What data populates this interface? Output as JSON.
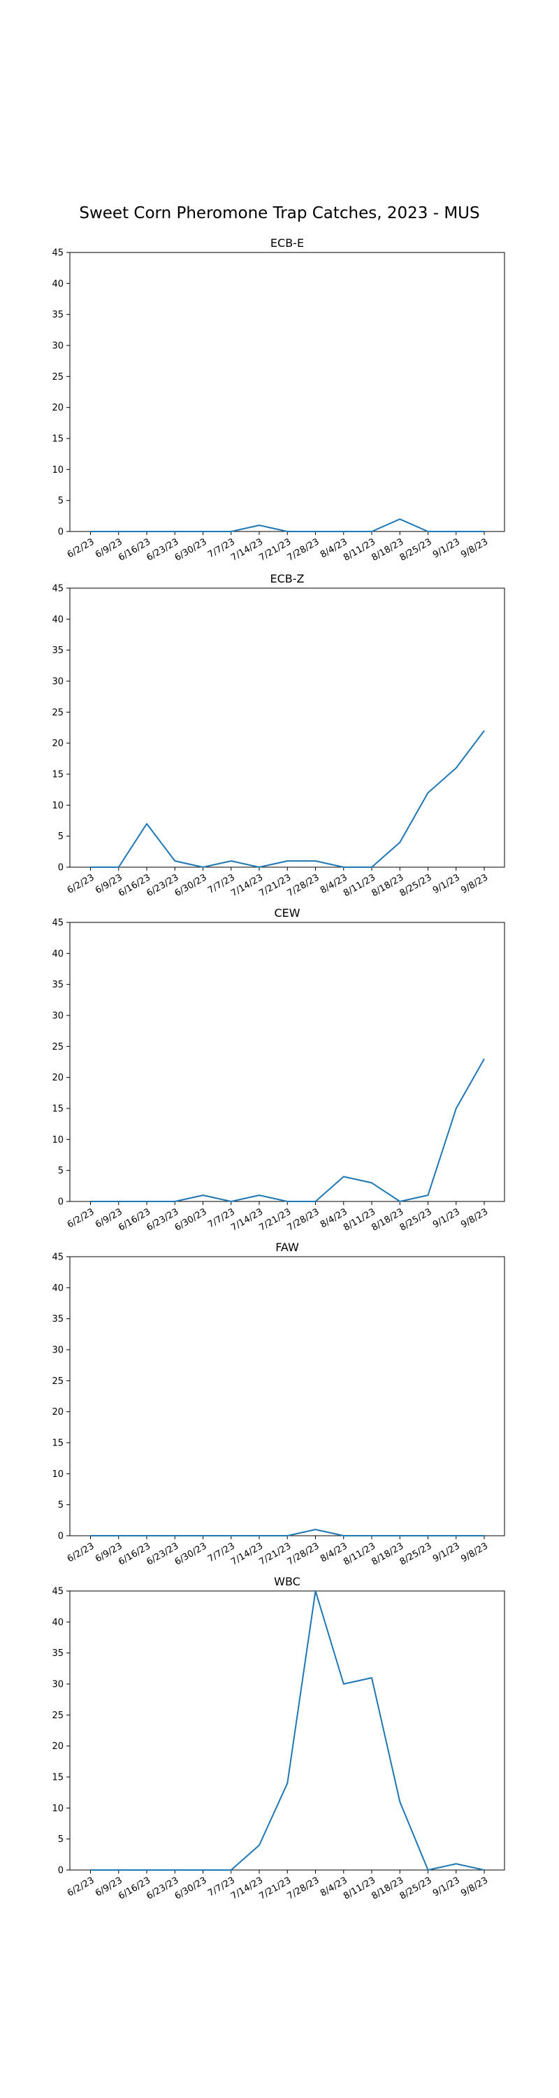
{
  "figure": {
    "title": "Sweet Corn Pheromone Trap Catches, 2023 - MUS"
  },
  "style": {
    "line_color": "#1f77b4",
    "axis_color": "#000000"
  },
  "chart_data": [
    {
      "type": "line",
      "title": "ECB-E",
      "categories": [
        "6/2/23",
        "6/9/23",
        "6/16/23",
        "6/23/23",
        "6/30/23",
        "7/7/23",
        "7/14/23",
        "7/21/23",
        "7/28/23",
        "8/4/23",
        "8/11/23",
        "8/18/23",
        "8/25/23",
        "9/1/23",
        "9/8/23"
      ],
      "values": [
        0,
        0,
        0,
        0,
        0,
        0,
        1,
        0,
        0,
        0,
        0,
        2,
        0,
        0,
        0
      ],
      "ylim": [
        0,
        45
      ],
      "yticks": [
        0,
        5,
        10,
        15,
        20,
        25,
        30,
        35,
        40,
        45
      ],
      "grid": false
    },
    {
      "type": "line",
      "title": "ECB-Z",
      "categories": [
        "6/2/23",
        "6/9/23",
        "6/16/23",
        "6/23/23",
        "6/30/23",
        "7/7/23",
        "7/14/23",
        "7/21/23",
        "7/28/23",
        "8/4/23",
        "8/11/23",
        "8/18/23",
        "8/25/23",
        "9/1/23",
        "9/8/23"
      ],
      "values": [
        0,
        0,
        7,
        1,
        0,
        1,
        0,
        1,
        1,
        0,
        0,
        4,
        12,
        16,
        22
      ],
      "ylim": [
        0,
        45
      ],
      "yticks": [
        0,
        5,
        10,
        15,
        20,
        25,
        30,
        35,
        40,
        45
      ],
      "grid": false
    },
    {
      "type": "line",
      "title": "CEW",
      "categories": [
        "6/2/23",
        "6/9/23",
        "6/16/23",
        "6/23/23",
        "6/30/23",
        "7/7/23",
        "7/14/23",
        "7/21/23",
        "7/28/23",
        "8/4/23",
        "8/11/23",
        "8/18/23",
        "8/25/23",
        "9/1/23",
        "9/8/23"
      ],
      "values": [
        0,
        0,
        0,
        0,
        1,
        0,
        1,
        0,
        0,
        4,
        3,
        0,
        1,
        15,
        23
      ],
      "ylim": [
        0,
        45
      ],
      "yticks": [
        0,
        5,
        10,
        15,
        20,
        25,
        30,
        35,
        40,
        45
      ],
      "grid": false
    },
    {
      "type": "line",
      "title": "FAW",
      "categories": [
        "6/2/23",
        "6/9/23",
        "6/16/23",
        "6/23/23",
        "6/30/23",
        "7/7/23",
        "7/14/23",
        "7/21/23",
        "7/28/23",
        "8/4/23",
        "8/11/23",
        "8/18/23",
        "8/25/23",
        "9/1/23",
        "9/8/23"
      ],
      "values": [
        0,
        0,
        0,
        0,
        0,
        0,
        0,
        0,
        1,
        0,
        0,
        0,
        0,
        0,
        0
      ],
      "ylim": [
        0,
        45
      ],
      "yticks": [
        0,
        5,
        10,
        15,
        20,
        25,
        30,
        35,
        40,
        45
      ],
      "grid": false
    },
    {
      "type": "line",
      "title": "WBC",
      "categories": [
        "6/2/23",
        "6/9/23",
        "6/16/23",
        "6/23/23",
        "6/30/23",
        "7/7/23",
        "7/14/23",
        "7/21/23",
        "7/28/23",
        "8/4/23",
        "8/11/23",
        "8/18/23",
        "8/25/23",
        "9/1/23",
        "9/8/23"
      ],
      "values": [
        0,
        0,
        0,
        0,
        0,
        0,
        4,
        14,
        45,
        30,
        31,
        11,
        0,
        1,
        0
      ],
      "ylim": [
        0,
        45
      ],
      "yticks": [
        0,
        5,
        10,
        15,
        20,
        25,
        30,
        35,
        40,
        45
      ],
      "grid": false
    }
  ]
}
